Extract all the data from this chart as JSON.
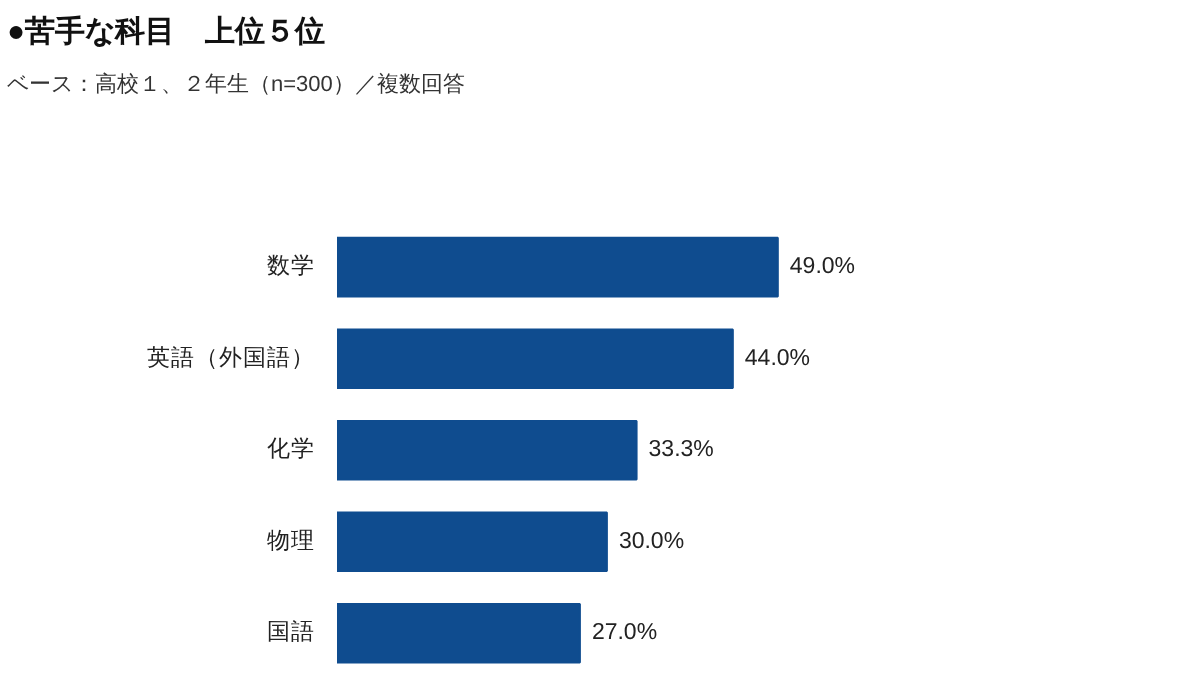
{
  "chart_data": {
    "type": "bar",
    "orientation": "horizontal",
    "title": "●苦手な科目　上位５位",
    "subtitle": "ベース：高校１、２年生（n=300）／複数回答",
    "categories": [
      "数学",
      "英語（外国語）",
      "化学",
      "物理",
      "国語"
    ],
    "values": [
      49.0,
      44.0,
      33.3,
      30.0,
      27.0
    ],
    "value_labels": [
      "49.0%",
      "44.0%",
      "33.3%",
      "30.0%",
      "27.0%"
    ],
    "color": "#0f4c8f",
    "grid": false
  }
}
